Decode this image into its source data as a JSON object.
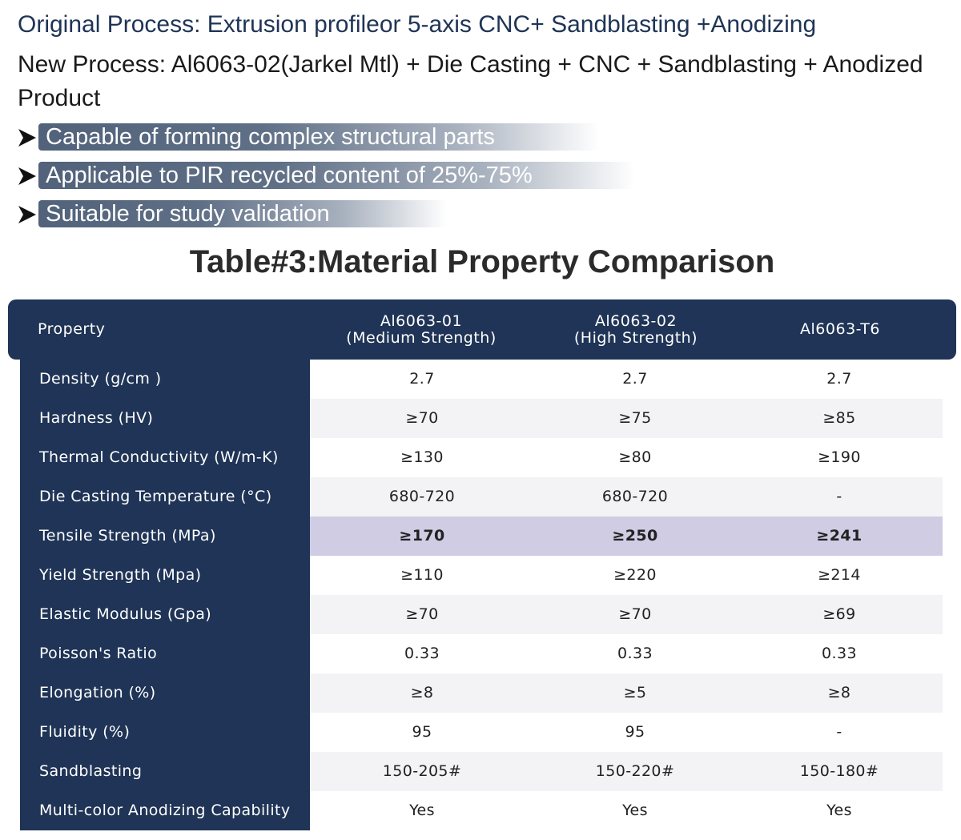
{
  "intro": {
    "original_process": "Original Process: Extrusion profileor 5-axis CNC+ Sandblasting +Anodizing",
    "new_process": "New  Process: Al6063-02(Jarkel Mtl) + Die Casting + CNC + Sandblasting + Anodized Product"
  },
  "bullets": [
    {
      "text": "Capable of forming complex structural parts",
      "icon": "arrow-right-icon"
    },
    {
      "text": "Applicable to PIR recycled content of 25%-75%",
      "icon": "arrow-right-icon"
    },
    {
      "text": "Suitable for study validation",
      "icon": "arrow-right-icon"
    }
  ],
  "table": {
    "title": "Table#3:Material Property Comparison",
    "headers": [
      "Property",
      "Al6063-01\n(Medium Strength)",
      "Al6063-02\n(High Strength)",
      "Al6063-T6"
    ],
    "rows": [
      {
        "property": "Density (g/cm  )",
        "values": [
          "2.7",
          "2.7",
          "2.7"
        ]
      },
      {
        "property": "Hardness (HV)",
        "values": [
          "≥70",
          "≥75",
          "≥85"
        ]
      },
      {
        "property": "Thermal Conductivity (W/m-K)",
        "values": [
          "≥130",
          "≥80",
          "≥190"
        ]
      },
      {
        "property": "Die Casting Temperature (°C)",
        "values": [
          "680-720",
          "680-720",
          "-"
        ]
      },
      {
        "property": "Tensile Strength (MPa)",
        "values": [
          "≥170",
          "≥250",
          "≥241"
        ],
        "highlighted": true
      },
      {
        "property": "Yield Strength (Mpa)",
        "values": [
          "≥110",
          "≥220",
          "≥214"
        ]
      },
      {
        "property": "Elastic Modulus (Gpa)",
        "values": [
          "≥70",
          "≥70",
          "≥69"
        ]
      },
      {
        "property": "Poisson's Ratio",
        "values": [
          "0.33",
          "0.33",
          "0.33"
        ]
      },
      {
        "property": "Elongation (%)",
        "values": [
          "≥8",
          "≥5",
          "≥8"
        ]
      },
      {
        "property": "Fluidity (%)",
        "values": [
          "95",
          "95",
          "-"
        ]
      },
      {
        "property": "Sandblasting",
        "values": [
          "150-205#",
          "150-220#",
          "150-180#"
        ]
      },
      {
        "property": "Multi-color Anodizing Capability",
        "values": [
          "Yes",
          "Yes",
          "Yes"
        ]
      }
    ]
  },
  "colors": {
    "header_navy": "#1f3456",
    "highlight_row": "#cfcce3",
    "alt_row": "#f3f3f5",
    "bullet_bar": "#51627a"
  }
}
